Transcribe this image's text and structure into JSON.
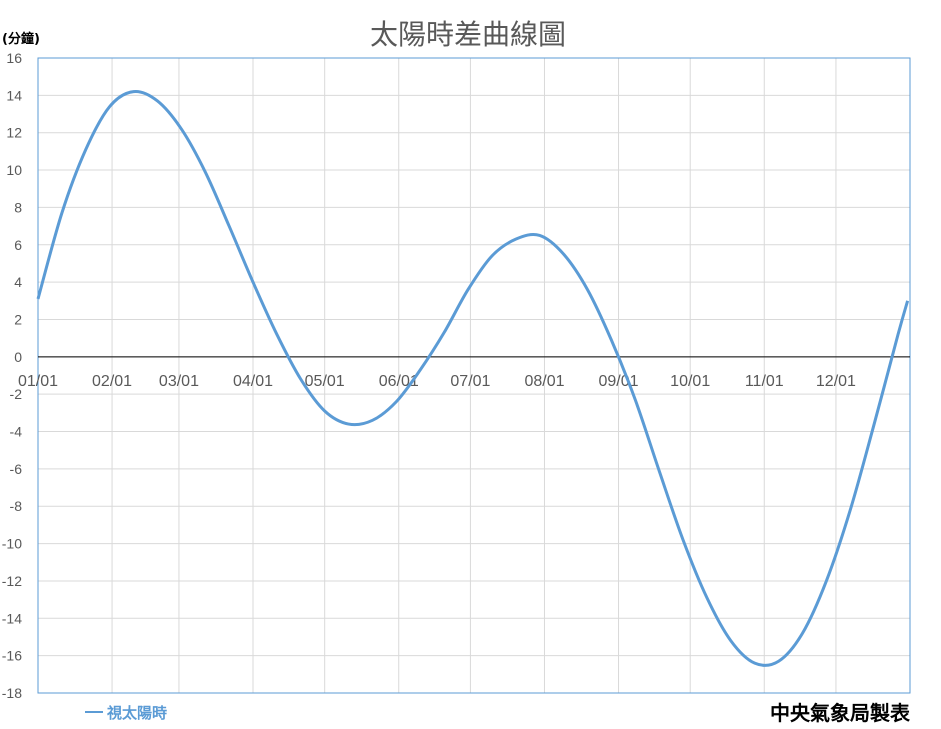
{
  "chart_data": {
    "type": "line",
    "title": "太陽時差曲線圖",
    "ylabel": "(分鐘)",
    "xlabel": "",
    "ylim": [
      -18,
      16
    ],
    "yticks": [
      16,
      14,
      12,
      10,
      8,
      6,
      4,
      2,
      0,
      -2,
      -4,
      -6,
      -8,
      -10,
      -12,
      -14,
      -16,
      -18
    ],
    "xticks": [
      "01/01",
      "02/01",
      "03/01",
      "04/01",
      "05/01",
      "06/01",
      "07/01",
      "08/01",
      "09/01",
      "10/01",
      "11/01",
      "12/01"
    ],
    "grid": true,
    "legend_position": "bottom-left",
    "series": [
      {
        "name": "視太陽時",
        "color": "#5B9BD5",
        "x_day_of_year": [
          1,
          11,
          21,
          31,
          41,
          51,
          61,
          71,
          81,
          91,
          101,
          111,
          121,
          131,
          141,
          151,
          161,
          171,
          181,
          191,
          201,
          211,
          221,
          231,
          241,
          251,
          261,
          271,
          281,
          291,
          301,
          311,
          321,
          331,
          341,
          351,
          361,
          365
        ],
        "values": [
          3.1,
          7.7,
          11.1,
          13.4,
          14.2,
          13.7,
          12.2,
          9.9,
          7.0,
          4.0,
          1.2,
          -1.2,
          -2.9,
          -3.6,
          -3.4,
          -2.4,
          -0.7,
          1.3,
          3.6,
          5.4,
          6.3,
          6.5,
          5.5,
          3.6,
          0.9,
          -2.3,
          -6.1,
          -9.8,
          -12.9,
          -15.2,
          -16.4,
          -16.3,
          -14.8,
          -12.0,
          -8.2,
          -3.6,
          1.2,
          3.0
        ]
      }
    ]
  },
  "footer": {
    "credit": "中央氣象局製表"
  }
}
